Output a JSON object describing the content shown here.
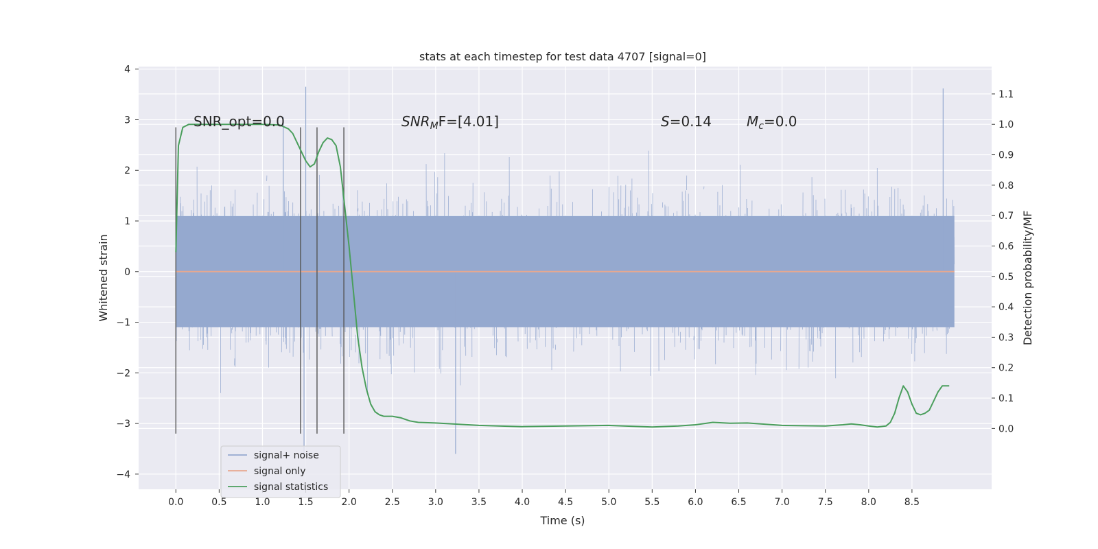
{
  "chart_data": {
    "type": "line",
    "title": "stats at each timestep for test data 4707 [signal=0]",
    "xlabel": "Time (s)",
    "ylabel": "Whitened strain",
    "ylabel_right": "Detection probability/MF",
    "xlim": [
      -0.43,
      9.42
    ],
    "ylim": [
      -4.3,
      4.05
    ],
    "ylim_right": [
      -0.2,
      1.19
    ],
    "x_ticks": [
      "0.0",
      "0.5",
      "1.0",
      "1.5",
      "2.0",
      "2.5",
      "3.0",
      "3.5",
      "4.0",
      "4.5",
      "5.0",
      "5.5",
      "6.0",
      "6.5",
      "7.0",
      "7.5",
      "8.0",
      "8.5"
    ],
    "y_ticks": [
      "4",
      "3",
      "2",
      "1",
      "0",
      "−1",
      "−2",
      "−3",
      "−4"
    ],
    "y_ticks_right": [
      "1.1",
      "1.0",
      "0.9",
      "0.8",
      "0.7",
      "0.6",
      "0.5",
      "0.4",
      "0.3",
      "0.2",
      "0.1",
      "0.0"
    ],
    "annotations": {
      "snr_opt": "SNR_opt=0.0",
      "snr_mf_label": "SNR",
      "snr_mf_sub": "M",
      "snr_mf_rest": "F=[4.01]",
      "s_label": "S",
      "s_rest": "=0.14",
      "mc_label": "M",
      "mc_sub": "c",
      "mc_rest": "=0.0"
    },
    "vertical_lines_x": [
      0.0,
      1.44,
      1.63,
      1.94
    ],
    "vertical_lines_range": [
      -3.2,
      2.85
    ],
    "noise_series": {
      "name": "signal+ noise",
      "x_range": [
        0.0,
        8.99
      ],
      "envelope_core": 1.1,
      "peak_max": 3.65,
      "peak_min": -3.6,
      "color": "#95a9cf"
    },
    "signal_series": {
      "name": "signal only",
      "x": [
        0.0,
        8.99
      ],
      "y": [
        0.0,
        0.0
      ],
      "color": "#e8a88f"
    },
    "statistics_series": {
      "name": "signal statistics",
      "color": "#4a9e5c",
      "x": [
        0.0,
        0.03,
        0.08,
        0.15,
        0.2,
        0.3,
        0.5,
        0.8,
        1.0,
        1.2,
        1.3,
        1.35,
        1.4,
        1.45,
        1.5,
        1.55,
        1.6,
        1.65,
        1.7,
        1.75,
        1.8,
        1.85,
        1.9,
        1.95,
        2.0,
        2.05,
        2.1,
        2.15,
        2.2,
        2.25,
        2.3,
        2.35,
        2.4,
        2.5,
        2.6,
        2.7,
        2.8,
        3.0,
        3.5,
        4.0,
        4.5,
        5.0,
        5.5,
        5.8,
        6.0,
        6.2,
        6.4,
        6.6,
        7.0,
        7.5,
        7.7,
        7.8,
        7.9,
        8.0,
        8.1,
        8.2,
        8.25,
        8.3,
        8.35,
        8.4,
        8.45,
        8.5,
        8.55,
        8.6,
        8.65,
        8.7,
        8.75,
        8.8,
        8.85,
        8.9,
        8.93
      ],
      "y": [
        0.58,
        0.93,
        0.99,
        1.0,
        1.0,
        1.0,
        1.0,
        1.0,
        1.0,
        0.998,
        0.985,
        0.97,
        0.94,
        0.91,
        0.88,
        0.86,
        0.87,
        0.91,
        0.94,
        0.955,
        0.95,
        0.93,
        0.86,
        0.73,
        0.6,
        0.45,
        0.3,
        0.2,
        0.13,
        0.08,
        0.055,
        0.045,
        0.04,
        0.04,
        0.035,
        0.025,
        0.02,
        0.018,
        0.01,
        0.006,
        0.008,
        0.01,
        0.005,
        0.008,
        0.012,
        0.02,
        0.017,
        0.018,
        0.01,
        0.008,
        0.012,
        0.015,
        0.012,
        0.008,
        0.005,
        0.008,
        0.02,
        0.05,
        0.1,
        0.14,
        0.12,
        0.08,
        0.05,
        0.045,
        0.05,
        0.06,
        0.09,
        0.12,
        0.14,
        0.14,
        0.14
      ]
    },
    "legend": {
      "position": "lower-left",
      "entries": [
        {
          "label": "signal+ noise",
          "color": "#95a9cf"
        },
        {
          "label": "signal only",
          "color": "#e8a88f"
        },
        {
          "label": "signal statistics",
          "color": "#4a9e5c"
        }
      ]
    },
    "background": "#eaeaf2",
    "grid_color": "#ffffff"
  }
}
